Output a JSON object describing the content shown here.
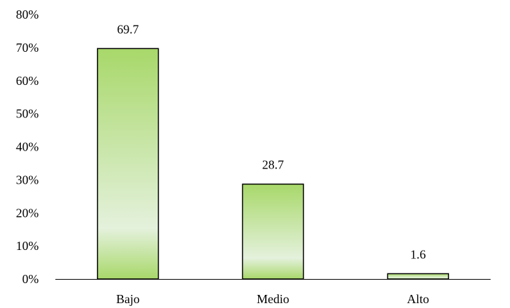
{
  "chart_data": {
    "type": "bar",
    "title": "",
    "xlabel": "",
    "ylabel": "",
    "categories": [
      "Bajo",
      "Medio",
      "Alto"
    ],
    "values": [
      69.7,
      28.7,
      1.6
    ],
    "data_labels": [
      "69.7",
      "28.7",
      "1.6"
    ],
    "ylim": [
      0,
      80
    ],
    "yticks": [
      0,
      10,
      20,
      30,
      40,
      50,
      60,
      70,
      80
    ],
    "ytick_labels": [
      "0%",
      "10%",
      "20%",
      "30%",
      "40%",
      "50%",
      "60%",
      "70%",
      "80%"
    ],
    "grid": false,
    "legend": "none",
    "bar_gradient": [
      "#a8d86a",
      "#e4f1dc",
      "#a8d86a"
    ],
    "bar_outline": "#000000"
  }
}
